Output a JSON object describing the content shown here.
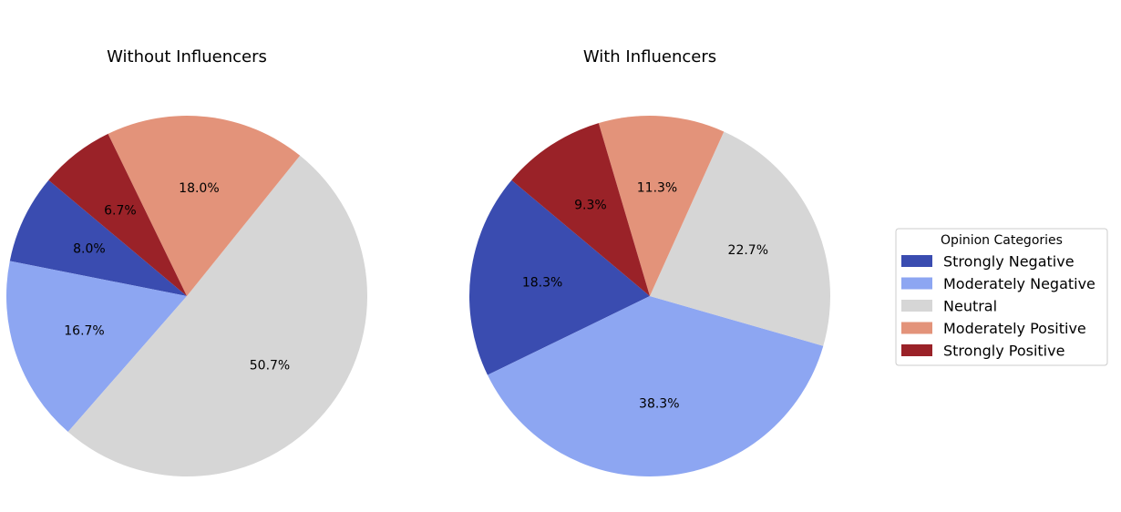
{
  "chart_data": [
    {
      "type": "pie",
      "title": "Without Influencers",
      "categories": [
        "Strongly Negative",
        "Moderately Negative",
        "Neutral",
        "Moderately Positive",
        "Strongly Positive"
      ],
      "values": [
        8.0,
        16.7,
        50.7,
        18.0,
        6.7
      ],
      "labels": [
        "8.0%",
        "16.7%",
        "50.7%",
        "18.0%",
        "6.7%"
      ],
      "start_angle_deg": 140,
      "direction": "counterclockwise"
    },
    {
      "type": "pie",
      "title": "With Influencers",
      "categories": [
        "Strongly Negative",
        "Moderately Negative",
        "Neutral",
        "Moderately Positive",
        "Strongly Positive"
      ],
      "values": [
        18.3,
        38.3,
        22.7,
        11.3,
        9.3
      ],
      "labels": [
        "18.3%",
        "38.3%",
        "22.7%",
        "11.3%",
        "9.3%"
      ],
      "start_angle_deg": 140,
      "direction": "counterclockwise"
    }
  ],
  "legend": {
    "title": "Opinion Categories",
    "placement": "right",
    "items": [
      {
        "label": "Strongly Negative",
        "color": "#3a4cb0"
      },
      {
        "label": "Moderately Negative",
        "color": "#8da6f2"
      },
      {
        "label": "Neutral",
        "color": "#d6d6d6"
      },
      {
        "label": "Moderately Positive",
        "color": "#e3937a"
      },
      {
        "label": "Strongly Positive",
        "color": "#9a2228"
      }
    ]
  }
}
